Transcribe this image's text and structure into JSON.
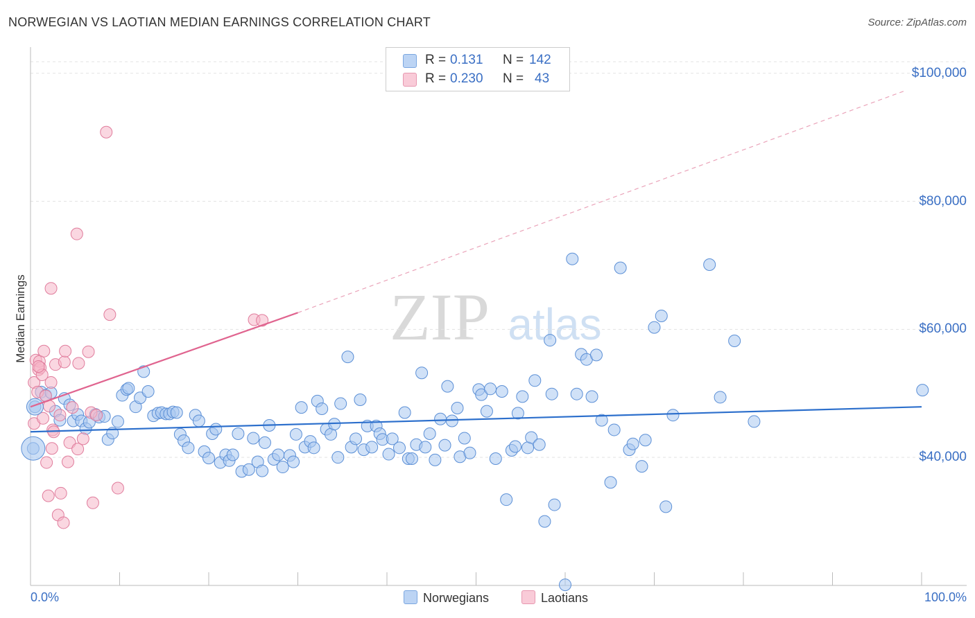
{
  "header": {
    "title": "NORWEGIAN VS LAOTIAN MEDIAN EARNINGS CORRELATION CHART",
    "source": "Source: ZipAtlas.com"
  },
  "watermark": {
    "zip": "ZIP",
    "atlas": "atlas"
  },
  "stats": {
    "rows": [
      {
        "r_label": "R =",
        "r_value": "0.131",
        "n_label": "N =",
        "n_value": "142",
        "color": "#a9c8f0"
      },
      {
        "r_label": "R =",
        "r_value": "0.230",
        "n_label": "N =",
        "n_value": "43",
        "color": "#f5b7c8"
      }
    ]
  },
  "legend": {
    "items": [
      {
        "label": "Norwegians",
        "color": "#a9c8f0"
      },
      {
        "label": "Laotians",
        "color": "#f5b7c8"
      }
    ]
  },
  "chart_data": {
    "type": "scatter",
    "title": "NORWEGIAN VS LAOTIAN MEDIAN EARNINGS CORRELATION CHART",
    "xlabel": "",
    "ylabel": "Median Earnings",
    "xlim": [
      0,
      100
    ],
    "ylim": [
      20000,
      103000
    ],
    "x_tick_labels": [
      "0.0%",
      "100.0%"
    ],
    "y_ticks": [
      40000,
      60000,
      80000,
      100000
    ],
    "y_tick_labels": [
      "$40,000",
      "$60,000",
      "$80,000",
      "$100,000"
    ],
    "grid": "horizontal dashed",
    "legend_position": "bottom-center",
    "series": [
      {
        "name": "Norwegians",
        "color": "#a9c8f0",
        "stroke": "#5b8fd6",
        "trend": {
          "x": [
            0,
            100
          ],
          "y": [
            44000,
            47900
          ],
          "style": "solid",
          "color": "#2c6fcc"
        },
        "points": [
          [
            0.3,
            41400
          ],
          [
            0.5,
            47900
          ],
          [
            1.2,
            50200
          ],
          [
            1.7,
            49700
          ],
          [
            2.3,
            50100
          ],
          [
            2.8,
            47200
          ],
          [
            3.3,
            45800
          ],
          [
            3.8,
            49200
          ],
          [
            4.4,
            48200
          ],
          [
            4.8,
            45700
          ],
          [
            5.3,
            46700
          ],
          [
            5.7,
            45700
          ],
          [
            6.2,
            44500
          ],
          [
            6.6,
            45500
          ],
          [
            7.3,
            46700
          ],
          [
            7.7,
            46300
          ],
          [
            8.3,
            46400
          ],
          [
            8.7,
            42800
          ],
          [
            9.2,
            43800
          ],
          [
            9.8,
            45600
          ],
          [
            10.3,
            49700
          ],
          [
            10.8,
            50600
          ],
          [
            11.0,
            50800
          ],
          [
            11.8,
            47900
          ],
          [
            12.3,
            49300
          ],
          [
            12.7,
            53400
          ],
          [
            13.2,
            50300
          ],
          [
            13.8,
            46500
          ],
          [
            14.3,
            46900
          ],
          [
            14.7,
            47000
          ],
          [
            15.2,
            46800
          ],
          [
            15.6,
            46800
          ],
          [
            16.0,
            47100
          ],
          [
            16.4,
            47000
          ],
          [
            16.8,
            43600
          ],
          [
            17.2,
            42600
          ],
          [
            17.7,
            41500
          ],
          [
            18.5,
            46600
          ],
          [
            18.9,
            45700
          ],
          [
            19.5,
            40900
          ],
          [
            20.0,
            39900
          ],
          [
            20.4,
            43700
          ],
          [
            20.8,
            44400
          ],
          [
            21.3,
            39200
          ],
          [
            21.9,
            40400
          ],
          [
            22.3,
            39500
          ],
          [
            22.7,
            40400
          ],
          [
            23.3,
            43700
          ],
          [
            23.7,
            37800
          ],
          [
            24.5,
            38100
          ],
          [
            25.0,
            43000
          ],
          [
            25.5,
            39300
          ],
          [
            26.0,
            37900
          ],
          [
            26.3,
            42300
          ],
          [
            26.8,
            45000
          ],
          [
            27.3,
            39700
          ],
          [
            27.8,
            40400
          ],
          [
            28.3,
            38500
          ],
          [
            29.1,
            40300
          ],
          [
            29.5,
            39300
          ],
          [
            29.8,
            43600
          ],
          [
            30.4,
            47800
          ],
          [
            30.8,
            41600
          ],
          [
            31.4,
            42500
          ],
          [
            31.8,
            41500
          ],
          [
            32.2,
            48800
          ],
          [
            32.7,
            47600
          ],
          [
            33.2,
            44400
          ],
          [
            33.7,
            43600
          ],
          [
            34.1,
            45200
          ],
          [
            34.5,
            40000
          ],
          [
            34.8,
            48400
          ],
          [
            35.6,
            55700
          ],
          [
            36.0,
            41600
          ],
          [
            36.5,
            42900
          ],
          [
            37.0,
            49000
          ],
          [
            37.4,
            41200
          ],
          [
            37.8,
            44900
          ],
          [
            38.3,
            41600
          ],
          [
            38.8,
            44900
          ],
          [
            39.2,
            43700
          ],
          [
            39.5,
            42800
          ],
          [
            40.2,
            40500
          ],
          [
            40.6,
            42900
          ],
          [
            41.4,
            41500
          ],
          [
            42.0,
            47000
          ],
          [
            42.4,
            39800
          ],
          [
            42.8,
            39800
          ],
          [
            43.3,
            42000
          ],
          [
            43.9,
            53200
          ],
          [
            44.3,
            41600
          ],
          [
            44.8,
            43700
          ],
          [
            45.4,
            39600
          ],
          [
            46.0,
            46000
          ],
          [
            46.5,
            41900
          ],
          [
            46.8,
            51100
          ],
          [
            47.3,
            45700
          ],
          [
            47.9,
            47700
          ],
          [
            48.2,
            40100
          ],
          [
            48.7,
            43000
          ],
          [
            49.3,
            40700
          ],
          [
            50.3,
            50600
          ],
          [
            50.6,
            49800
          ],
          [
            51.2,
            47200
          ],
          [
            51.6,
            50700
          ],
          [
            52.2,
            39800
          ],
          [
            52.9,
            50300
          ],
          [
            53.4,
            33400
          ],
          [
            54.0,
            41100
          ],
          [
            54.4,
            41700
          ],
          [
            54.7,
            46900
          ],
          [
            55.2,
            49500
          ],
          [
            55.8,
            41500
          ],
          [
            56.2,
            43100
          ],
          [
            56.6,
            52000
          ],
          [
            57.1,
            42000
          ],
          [
            57.7,
            30000
          ],
          [
            58.3,
            58300
          ],
          [
            58.8,
            32600
          ],
          [
            58.5,
            49900
          ],
          [
            60.0,
            20100
          ],
          [
            60.8,
            71000
          ],
          [
            61.3,
            49900
          ],
          [
            61.8,
            56100
          ],
          [
            62.4,
            55300
          ],
          [
            63.0,
            49500
          ],
          [
            63.5,
            56000
          ],
          [
            64.1,
            45800
          ],
          [
            65.1,
            36100
          ],
          [
            65.5,
            44300
          ],
          [
            66.2,
            69600
          ],
          [
            67.2,
            41200
          ],
          [
            67.6,
            42100
          ],
          [
            68.6,
            38600
          ],
          [
            69.0,
            42700
          ],
          [
            70.0,
            60300
          ],
          [
            70.8,
            62100
          ],
          [
            71.3,
            32300
          ],
          [
            72.1,
            46600
          ],
          [
            76.2,
            70100
          ],
          [
            77.4,
            49400
          ],
          [
            79.0,
            58200
          ],
          [
            81.2,
            45600
          ],
          [
            100.1,
            50500
          ]
        ]
      },
      {
        "name": "Laotians",
        "color": "#f5b7c8",
        "stroke": "#e07c9c",
        "trend": {
          "x": [
            0,
            30
          ],
          "y": [
            47900,
            62600
          ],
          "style": "solid",
          "color": "#e0648f",
          "extension": {
            "x": [
              30,
              98
            ],
            "y": [
              62600,
              97200
            ],
            "style": "dashed"
          }
        },
        "points": [
          [
            0.4,
            45300
          ],
          [
            0.4,
            51700
          ],
          [
            0.6,
            55200
          ],
          [
            0.8,
            50200
          ],
          [
            0.9,
            53700
          ],
          [
            1.0,
            55000
          ],
          [
            1.1,
            54000
          ],
          [
            1.3,
            52900
          ],
          [
            1.5,
            56600
          ],
          [
            1.7,
            49600
          ],
          [
            1.8,
            39200
          ],
          [
            2.0,
            34000
          ],
          [
            2.1,
            48000
          ],
          [
            2.3,
            51700
          ],
          [
            2.4,
            41400
          ],
          [
            2.5,
            44300
          ],
          [
            2.8,
            54500
          ],
          [
            3.1,
            31000
          ],
          [
            3.3,
            46600
          ],
          [
            3.4,
            34400
          ],
          [
            3.7,
            29800
          ],
          [
            3.8,
            54900
          ],
          [
            3.9,
            56600
          ],
          [
            4.2,
            39300
          ],
          [
            4.4,
            42300
          ],
          [
            4.7,
            47800
          ],
          [
            5.2,
            74900
          ],
          [
            5.3,
            41300
          ],
          [
            5.4,
            54700
          ],
          [
            5.9,
            42900
          ],
          [
            6.5,
            56500
          ],
          [
            6.8,
            47000
          ],
          [
            7.0,
            32900
          ],
          [
            7.4,
            46600
          ],
          [
            8.5,
            90800
          ],
          [
            8.9,
            62300
          ],
          [
            9.8,
            35200
          ],
          [
            2.3,
            66400
          ],
          [
            25.1,
            61500
          ],
          [
            26.0,
            61400
          ],
          [
            0.9,
            54200
          ],
          [
            1.4,
            46100
          ],
          [
            2.6,
            44000
          ]
        ]
      }
    ]
  }
}
